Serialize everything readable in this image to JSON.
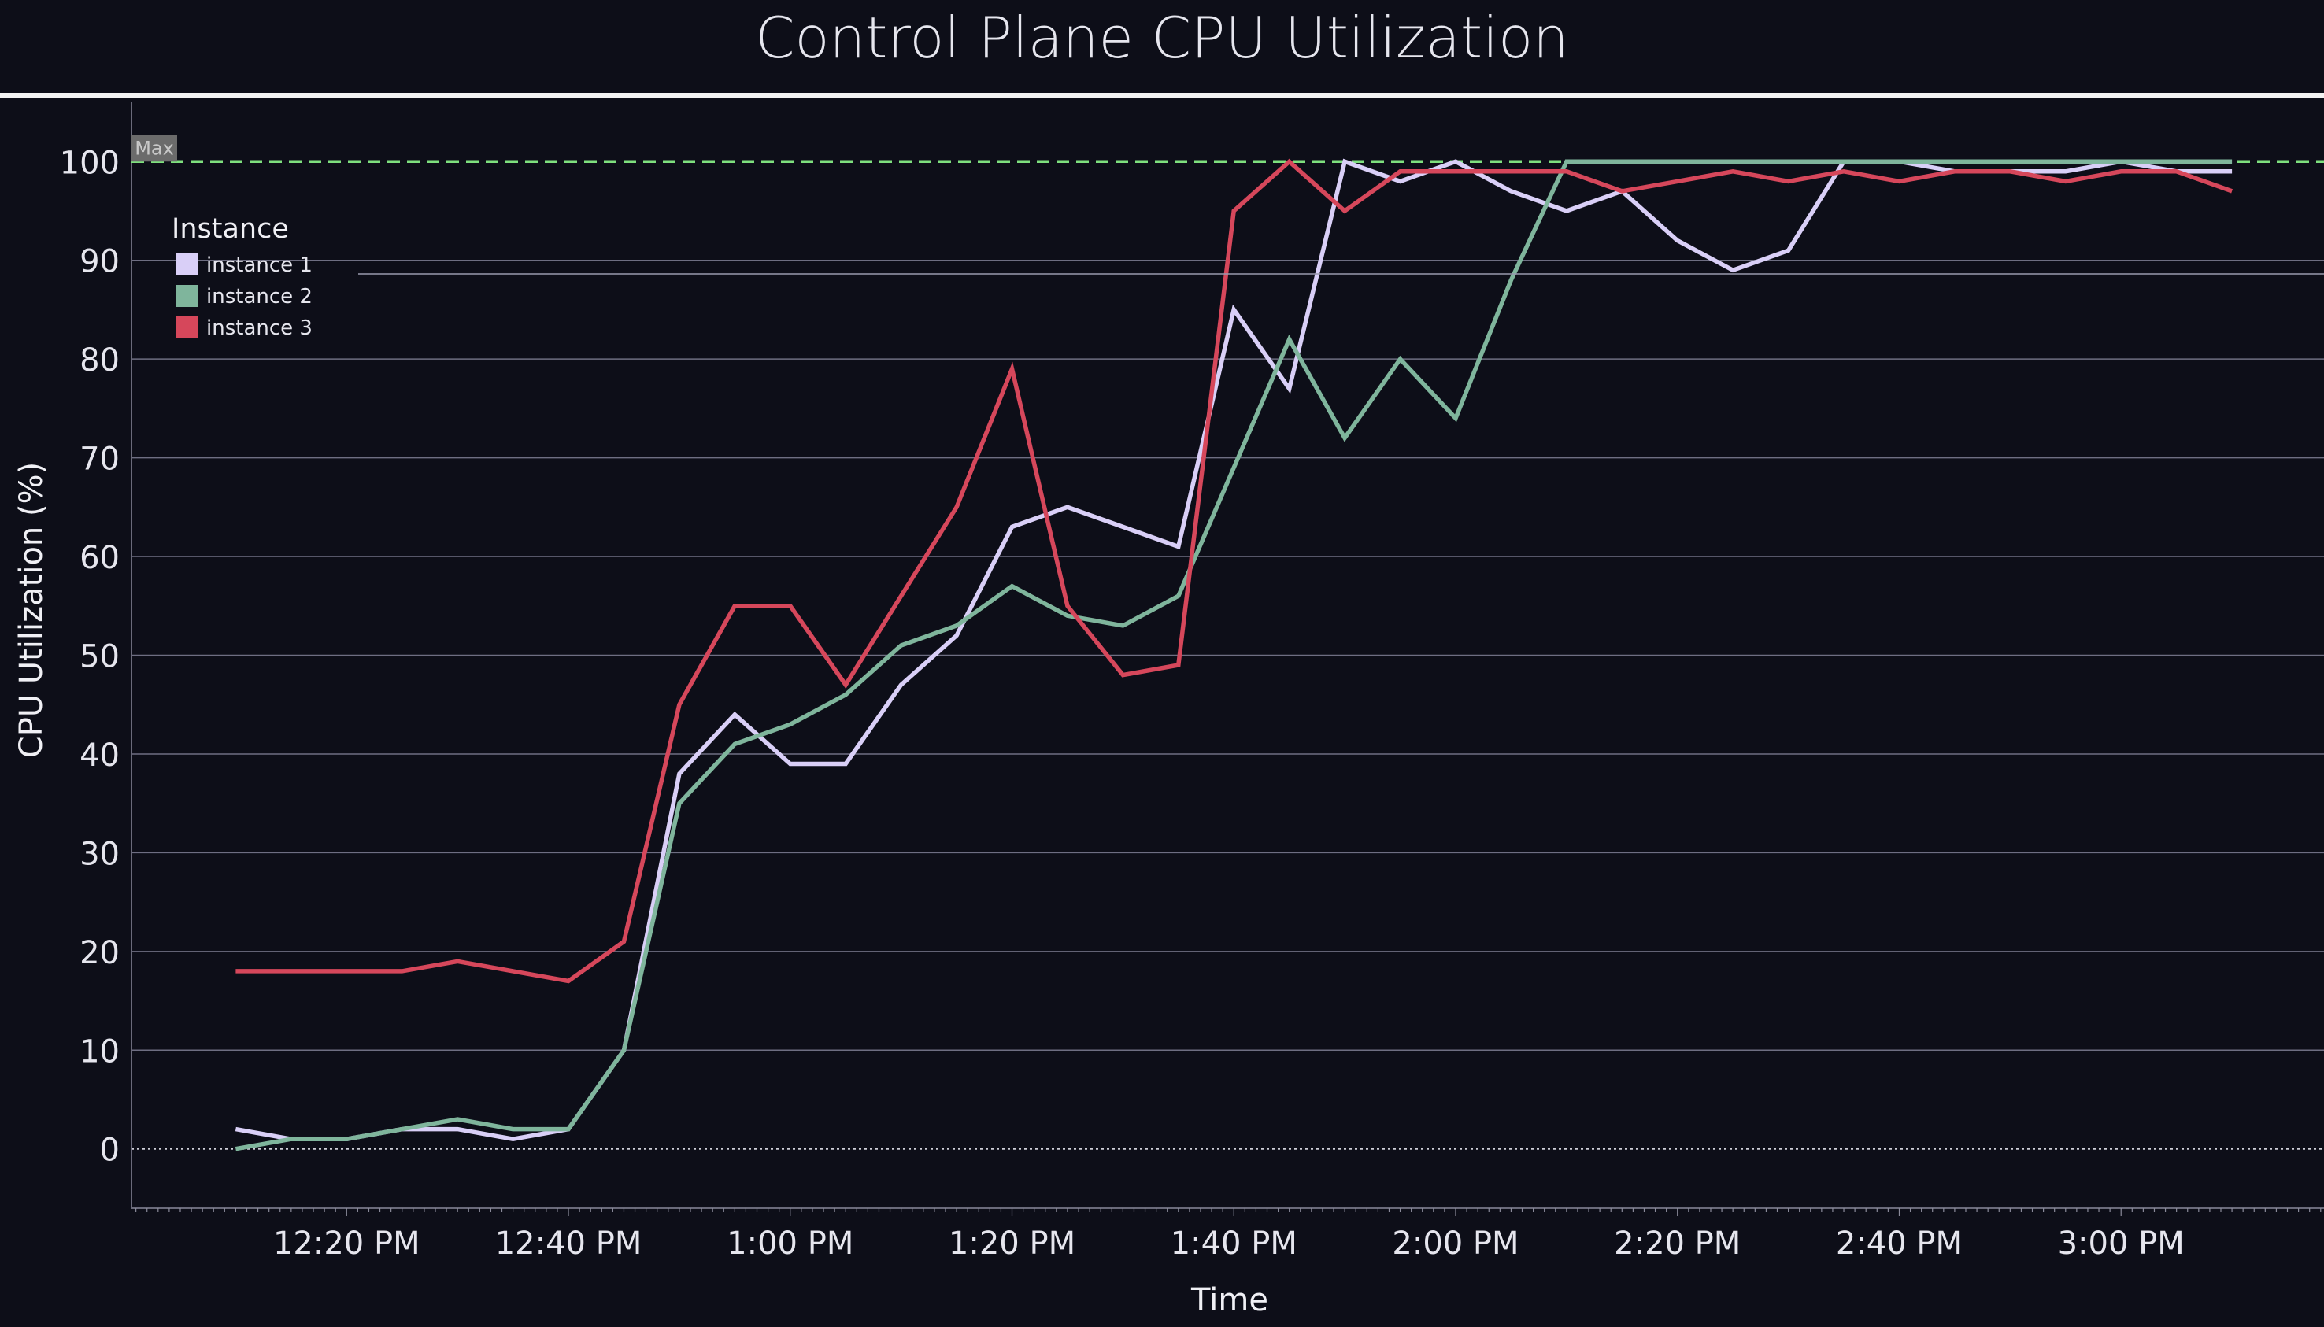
{
  "chart_data": {
    "type": "line",
    "title": "Control Plane CPU Utilization",
    "xlabel": "Time",
    "ylabel": "CPU Utilization (%)",
    "ylim": [
      -6,
      106
    ],
    "y_ticks": [
      0,
      10,
      20,
      30,
      40,
      50,
      60,
      70,
      80,
      90,
      100
    ],
    "x_ticks": [
      {
        "minutes": 740,
        "label": "12:20 PM"
      },
      {
        "minutes": 760,
        "label": "12:40 PM"
      },
      {
        "minutes": 780,
        "label": "1:00 PM"
      },
      {
        "minutes": 800,
        "label": "1:20 PM"
      },
      {
        "minutes": 820,
        "label": "1:40 PM"
      },
      {
        "minutes": 840,
        "label": "2:00 PM"
      },
      {
        "minutes": 860,
        "label": "2:20 PM"
      },
      {
        "minutes": 880,
        "label": "2:40 PM"
      },
      {
        "minutes": 900,
        "label": "3:00 PM"
      }
    ],
    "x": [
      "12:10 PM",
      "12:15 PM",
      "12:20 PM",
      "12:25 PM",
      "12:30 PM",
      "12:35 PM",
      "12:40 PM",
      "12:45 PM",
      "12:50 PM",
      "12:55 PM",
      "1:00 PM",
      "1:05 PM",
      "1:10 PM",
      "1:15 PM",
      "1:20 PM",
      "1:25 PM",
      "1:30 PM",
      "1:35 PM",
      "1:40 PM",
      "1:45 PM",
      "1:50 PM",
      "1:55 PM",
      "2:00 PM",
      "2:05 PM",
      "2:10 PM",
      "2:15 PM",
      "2:20 PM",
      "2:25 PM",
      "2:30 PM",
      "2:35 PM",
      "2:40 PM",
      "2:45 PM",
      "2:50 PM",
      "2:55 PM",
      "3:00 PM",
      "3:05 PM",
      "3:10 PM"
    ],
    "x_minutes": [
      730,
      735,
      740,
      745,
      750,
      755,
      760,
      765,
      770,
      775,
      780,
      785,
      790,
      795,
      800,
      805,
      810,
      815,
      820,
      825,
      830,
      835,
      840,
      845,
      850,
      855,
      860,
      865,
      870,
      875,
      880,
      885,
      890,
      895,
      900,
      905,
      910
    ],
    "x_range_minutes": [
      720.6,
      918.3
    ],
    "series": [
      {
        "name": "instance 1",
        "color": "#d9cff7",
        "values": [
          2,
          1,
          1,
          2,
          2,
          1,
          2,
          10,
          38,
          44,
          39,
          39,
          47,
          52,
          63,
          65,
          63,
          61,
          85,
          77,
          100,
          98,
          100,
          97,
          95,
          97,
          92,
          89,
          91,
          100,
          100,
          99,
          99,
          99,
          100,
          99,
          99
        ]
      },
      {
        "name": "instance 2",
        "color": "#7fb59c",
        "values": [
          0,
          1,
          1,
          2,
          3,
          2,
          2,
          10,
          35,
          41,
          43,
          46,
          51,
          53,
          57,
          54,
          53,
          56,
          69,
          82,
          72,
          80,
          74,
          88,
          100,
          100,
          100,
          100,
          100,
          100,
          100,
          100,
          100,
          100,
          100,
          100,
          100
        ]
      },
      {
        "name": "instance 3",
        "color": "#d6475b",
        "values": [
          18,
          18,
          18,
          18,
          19,
          18,
          17,
          21,
          45,
          55,
          55,
          47,
          56,
          65,
          79,
          55,
          48,
          49,
          95,
          100,
          95,
          99,
          99,
          99,
          99,
          97,
          98,
          99,
          98,
          99,
          98,
          99,
          99,
          98,
          99,
          99,
          97
        ]
      }
    ],
    "reference_line": {
      "value": 100,
      "label": "Max",
      "color": "#7ee07e"
    },
    "legend": {
      "title": "Instance",
      "position": "top-left"
    },
    "grid": true
  }
}
